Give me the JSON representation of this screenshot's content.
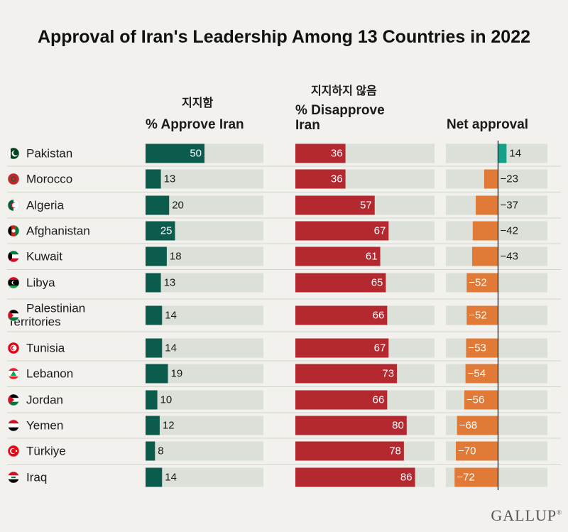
{
  "title": "Approval of Iran's Leadership Among 13 Countries in 2022",
  "headers": {
    "approve_korean": "지지함",
    "approve": "% Approve Iran",
    "disapprove_korean": "지지하지 않음",
    "disapprove_line1": "% Disapprove",
    "disapprove_line2": "Iran",
    "net": "Net approval"
  },
  "brand": "GALLUP",
  "colors": {
    "approve": "#0b5c4c",
    "disapprove": "#b4282f",
    "net_positive": "#16a08a",
    "net_negative": "#e07a36",
    "track": "#dbe0d8",
    "divider": "#cfd6cc"
  },
  "chart_data": {
    "type": "bar",
    "title": "Approval of Iran's Leadership Among 13 Countries in 2022",
    "categories": [
      "Pakistan",
      "Morocco",
      "Algeria",
      "Afghanistan",
      "Kuwait",
      "Libya",
      "Palestinian Territories",
      "Tunisia",
      "Lebanon",
      "Jordan",
      "Yemen",
      "Türkiye",
      "Iraq"
    ],
    "series": [
      {
        "name": "% Approve Iran",
        "values": [
          50,
          13,
          20,
          25,
          18,
          13,
          14,
          14,
          19,
          10,
          12,
          8,
          14
        ]
      },
      {
        "name": "% Disapprove Iran",
        "values": [
          36,
          36,
          57,
          67,
          61,
          65,
          66,
          67,
          73,
          66,
          80,
          78,
          86
        ]
      },
      {
        "name": "Net approval",
        "values": [
          14,
          -23,
          -37,
          -42,
          -43,
          -52,
          -52,
          -53,
          -54,
          -56,
          -68,
          -70,
          -72
        ]
      }
    ],
    "xlim": [
      0,
      100
    ],
    "net_xlim": [
      -100,
      100
    ],
    "grid": false,
    "flags": [
      "pakistan",
      "morocco",
      "algeria",
      "afghanistan",
      "kuwait",
      "libya",
      "palestine",
      "tunisia",
      "lebanon",
      "jordan",
      "yemen",
      "turkiye",
      "iraq"
    ]
  }
}
